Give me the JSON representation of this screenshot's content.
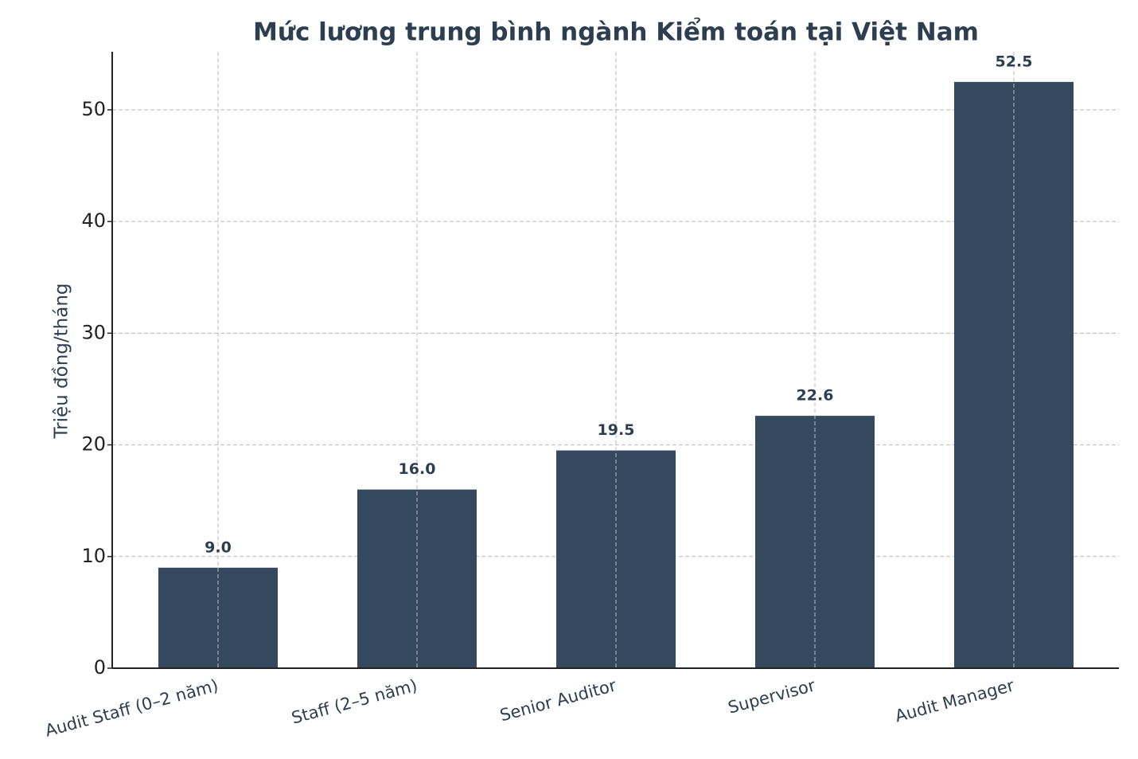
{
  "chart_data": {
    "type": "bar",
    "title": "Mức lương trung bình ngành Kiểm toán tại Việt Nam",
    "y_label": "Triệu đồng/tháng",
    "categories": [
      "Audit Staff (0–2 năm)",
      "Staff (2–5 năm)",
      "Senior Auditor",
      "Supervisor",
      "Audit Manager"
    ],
    "values": [
      9.0,
      16.0,
      19.5,
      22.6,
      52.5
    ],
    "value_labels": [
      "9.0",
      "16.0",
      "19.5",
      "22.6",
      "52.5"
    ],
    "color": "#34495e",
    "ylim": [
      0,
      55.2
    ],
    "yticks": [
      0,
      10,
      20,
      30,
      40,
      50
    ],
    "grid": true
  }
}
